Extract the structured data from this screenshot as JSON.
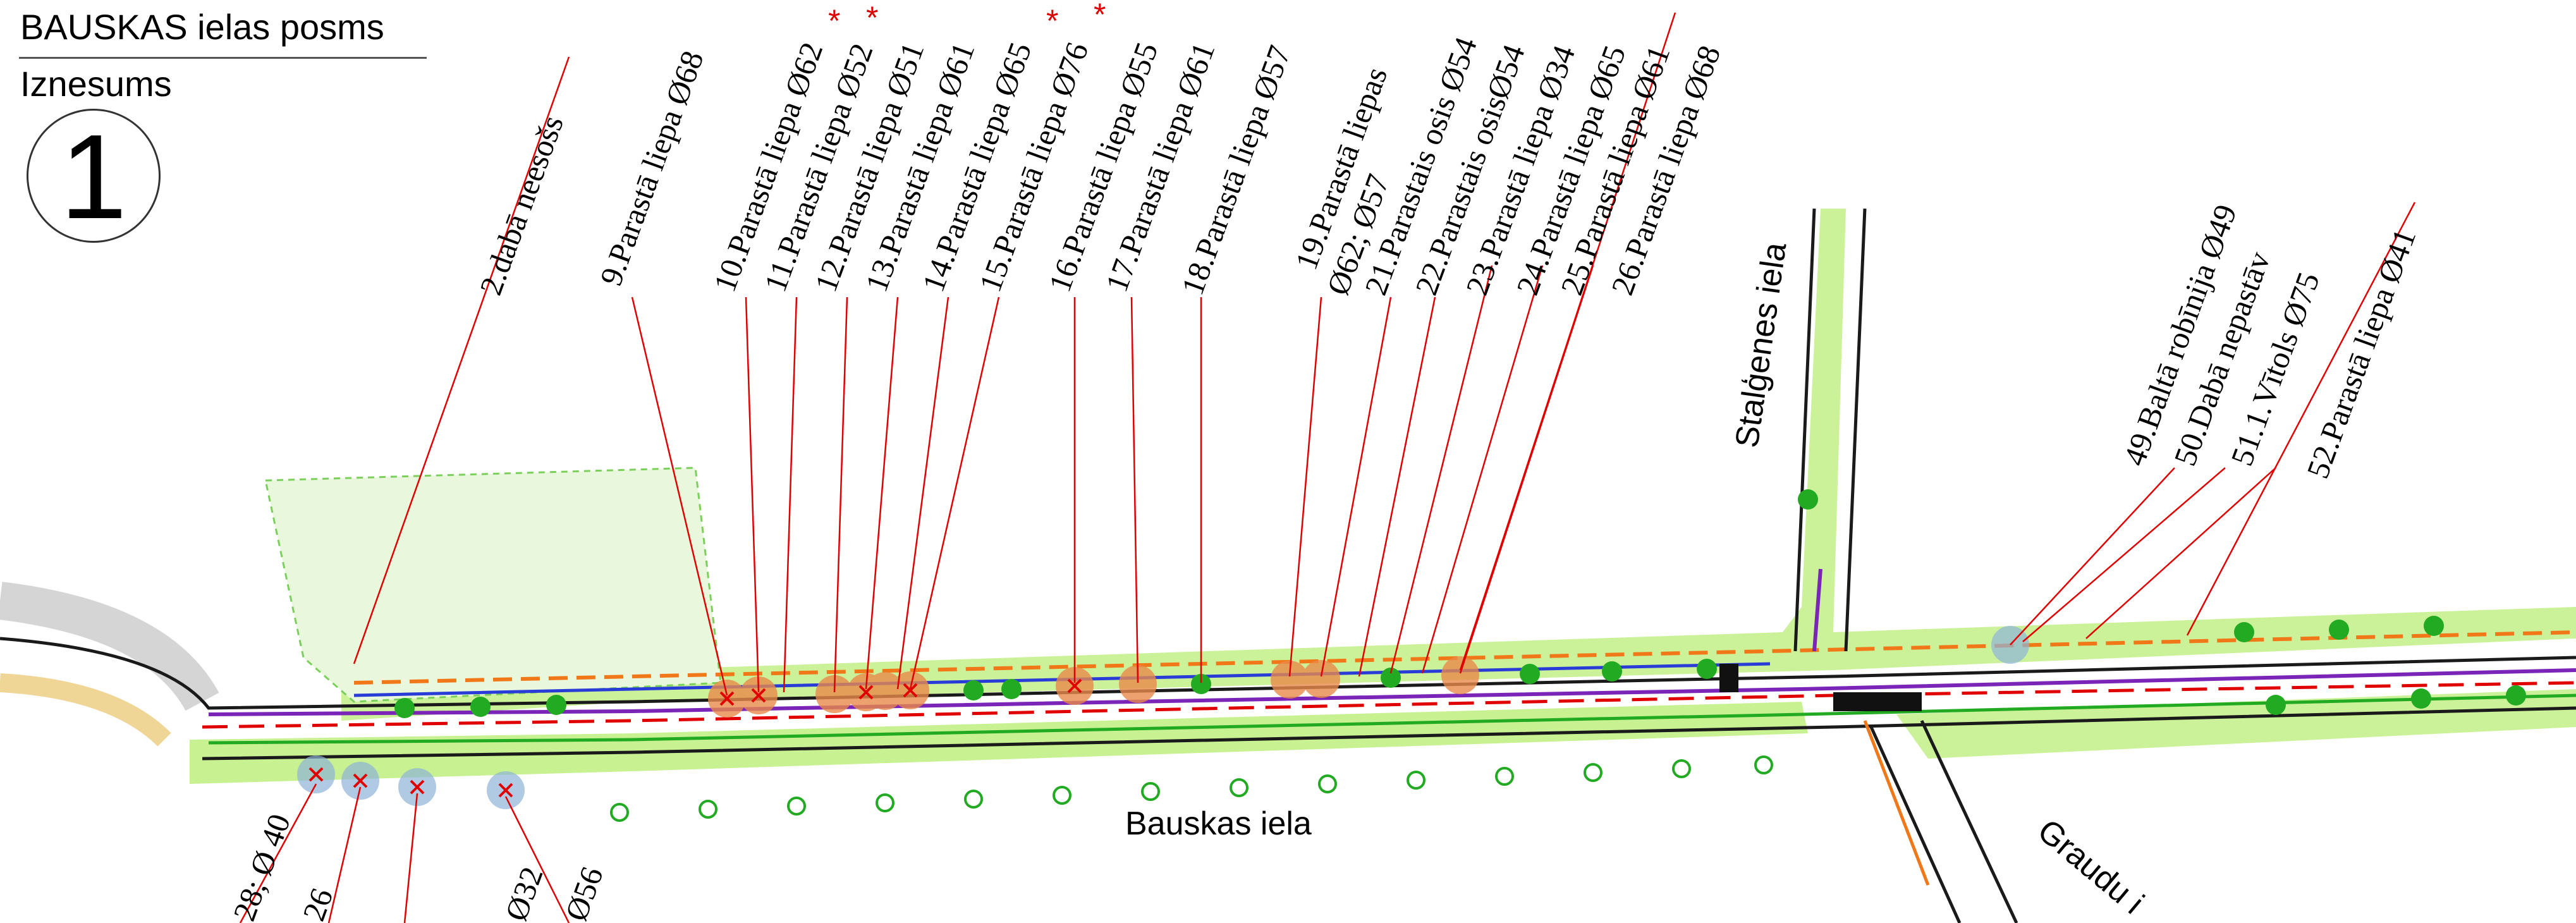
{
  "title": {
    "street": "BAUSKAS ielas posms",
    "subtitle": "Iznesums",
    "sheet_number": "1"
  },
  "streets": {
    "bauskas": "Bauskas iela",
    "stalgenes": "Stalģenes iela",
    "graudu": "Graudu i"
  },
  "tree_labels": [
    {
      "text": "2.dabā neesošs",
      "star": false
    },
    {
      "text": "9.Parastā liepa Ø68",
      "star": false
    },
    {
      "text": "10.Parastā liepa Ø62",
      "star": true
    },
    {
      "text": "11.Parastā liepa Ø52",
      "star": true
    },
    {
      "text": "12.Parastā liepa Ø51",
      "star": false
    },
    {
      "text": "13.Parastā liepa Ø61",
      "star": false
    },
    {
      "text": "14.Parastā liepa Ø65",
      "star": true
    },
    {
      "text": "15.Parastā liepa Ø76",
      "star": true
    },
    {
      "text": "16.Parastā liepa Ø55",
      "star": false
    },
    {
      "text": "17.Parastā liepa Ø61",
      "star": false
    },
    {
      "text": "18.Parastā liepa Ø57",
      "star": false
    },
    {
      "text": "19.Parastā liepas",
      "star": false
    },
    {
      "text": "Ø62; Ø57",
      "star": false
    },
    {
      "text": "21.Parastais osis Ø54",
      "star": false
    },
    {
      "text": "22.Parastais osisØ54",
      "star": false
    },
    {
      "text": "23.Parastā liepa Ø34",
      "star": false
    },
    {
      "text": "24.Parastā liepa Ø65",
      "star": false
    },
    {
      "text": "25.Parastā liepa Ø61",
      "star": false
    },
    {
      "text": "26.Parastā liepa Ø68",
      "star": false
    },
    {
      "text": "49.Baltā robīnija Ø49",
      "star": false
    },
    {
      "text": "50.Dabā nepastāv",
      "star": false
    },
    {
      "text": "51.1.Vītols Ø75",
      "star": false
    },
    {
      "text": "52.Parastā liepa Ø41",
      "star": false
    }
  ],
  "bottom_labels": [
    {
      "text": "28; Ø 40"
    },
    {
      "text": "26"
    },
    {
      "text": "Ø32"
    },
    {
      "text": "Ø56"
    }
  ],
  "colors": {
    "grass": "#b6ec6e",
    "road_line": "#1a1a1a",
    "cut_tree": "#e98a4a",
    "kept_tree": "#22aa22",
    "leader": "#e00000",
    "utility_blue": "#2a3cd8",
    "utility_purple": "#7a24b8",
    "utility_orange": "#f07818"
  }
}
